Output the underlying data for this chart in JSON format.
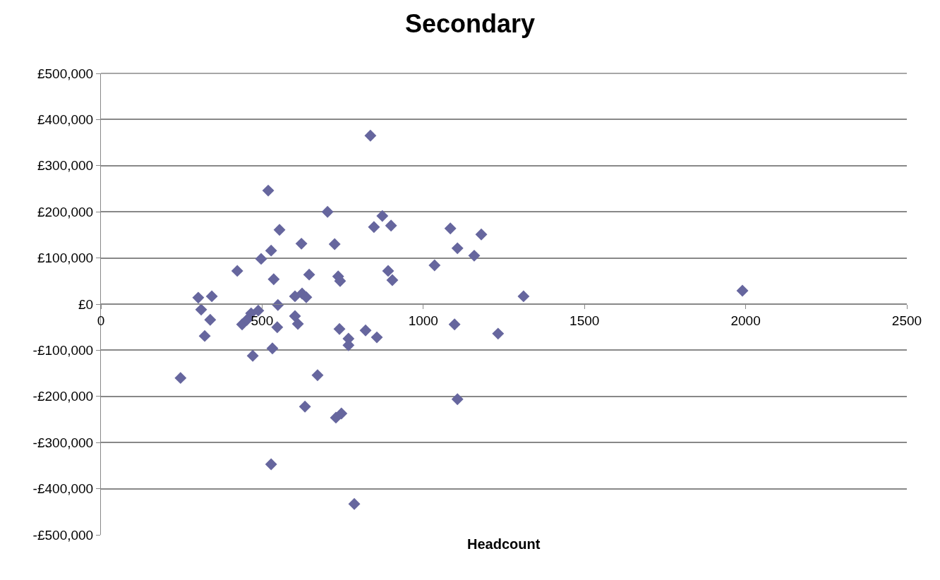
{
  "chart_data": {
    "type": "scatter",
    "title": "Secondary",
    "xlabel": "Headcount",
    "xlim": [
      0,
      2500
    ],
    "xticks": [
      0,
      500,
      1000,
      1500,
      2000,
      2500
    ],
    "ylim": [
      -500000,
      500000
    ],
    "yticks": [
      {
        "value": -500000,
        "label": "-£500,000"
      },
      {
        "value": -400000,
        "label": "-£400,000"
      },
      {
        "value": -300000,
        "label": "-£300,000"
      },
      {
        "value": -200000,
        "label": "-£200,000"
      },
      {
        "value": -100000,
        "label": "-£100,000"
      },
      {
        "value": 0,
        "label": "£0"
      },
      {
        "value": 100000,
        "label": "£100,000"
      },
      {
        "value": 200000,
        "label": "£200,000"
      },
      {
        "value": 300000,
        "label": "£300,000"
      },
      {
        "value": 400000,
        "label": "£400,000"
      },
      {
        "value": 500000,
        "label": "£500,000"
      }
    ],
    "grid": "y",
    "marker": "diamond",
    "series": [
      {
        "color": "#66669e",
        "x": [
          247,
          302,
          311,
          322,
          339,
          344,
          423,
          438,
          453,
          466,
          471,
          488,
          497,
          519,
          528,
          528,
          532,
          536,
          547,
          549,
          554,
          602,
          602,
          611,
          622,
          624,
          633,
          637,
          646,
          672,
          703,
          725,
          729,
          736,
          742,
          740,
          746,
          768,
          768,
          786,
          821,
          836,
          847,
          856,
          873,
          891,
          900,
          904,
          1035,
          1084,
          1097,
          1106,
          1106,
          1158,
          1180,
          1232,
          1311,
          1990
        ],
        "values": [
          -160000,
          14000,
          -12000,
          -69000,
          -34000,
          17000,
          72000,
          -44000,
          -34000,
          -20000,
          -112000,
          -14000,
          98000,
          246000,
          116000,
          -347000,
          -96000,
          54000,
          -50000,
          -2000,
          161000,
          17000,
          -26000,
          -43000,
          131000,
          23000,
          -222000,
          15000,
          64000,
          -154000,
          200000,
          130000,
          -246000,
          60000,
          50000,
          -54000,
          -237000,
          -75000,
          -89000,
          -433000,
          -57000,
          365000,
          167000,
          -72000,
          191000,
          72000,
          170000,
          52000,
          84000,
          164000,
          -44000,
          121000,
          -206000,
          105000,
          151000,
          -64000,
          17000,
          29000
        ]
      }
    ]
  }
}
